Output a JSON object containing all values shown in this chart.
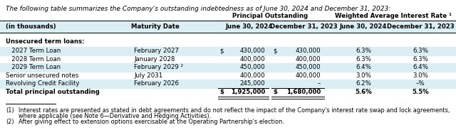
{
  "title": "The following table summarizes the Company's outstanding indebtedness as of June 30, 2024 and December 31, 2023:",
  "header_group1": "Principal Outstanding",
  "header_group2": "Weighted Average Interest Rate ¹",
  "col_headers": [
    "(in thousands)",
    "Maturity Date",
    "June 30, 2024",
    "December 31, 2023",
    "June 30, 2024",
    "December 31, 2023"
  ],
  "section_header": "Unsecured term loans:",
  "rows": [
    {
      "label": "   2027 Term Loan",
      "maturity": "February 2027",
      "dollar1": "$",
      "po_jun24": "430,000",
      "dollar2": "$",
      "po_dec23": "430,000",
      "ir_jun24": "6.3%",
      "ir_dec23": "6.3%",
      "shade": true
    },
    {
      "label": "   2028 Term Loan",
      "maturity": "January 2028",
      "dollar1": "",
      "po_jun24": "400,000",
      "dollar2": "",
      "po_dec23": "400,000",
      "ir_jun24": "6.3%",
      "ir_dec23": "6.3%",
      "shade": false
    },
    {
      "label": "   2029 Term Loan",
      "maturity": "February 2029 ²",
      "dollar1": "",
      "po_jun24": "450,000",
      "dollar2": "",
      "po_dec23": "450,000",
      "ir_jun24": "6.4%",
      "ir_dec23": "6.4%",
      "shade": true
    },
    {
      "label": "Senior unsecured notes",
      "maturity": "July 2031",
      "dollar1": "",
      "po_jun24": "400,000",
      "dollar2": "",
      "po_dec23": "400,000",
      "ir_jun24": "3.0%",
      "ir_dec23": "3.0%",
      "shade": false
    },
    {
      "label": "Revolving Credit Facility",
      "maturity": "February 2026",
      "dollar1": "",
      "po_jun24": "245,000",
      "dollar2": "",
      "po_dec23": "–",
      "ir_jun24": "6.2%",
      "ir_dec23": "–%",
      "shade": true
    }
  ],
  "total_label": "Total principal outstanding",
  "total_dollar1": "$",
  "total_po_jun24": "1,925,000",
  "total_dollar2": "$",
  "total_po_dec23": "1,680,000",
  "total_ir_jun24": "5.6%",
  "total_ir_dec23": "5.5%",
  "footnote1a": "(1)",
  "footnote1b": "Interest rates are presented as stated in debt agreements and do not reflect the impact of the Company's interest rate swap and lock agreements,",
  "footnote1c": "where applicable (see Note 6—Derivative and Hedging Activities).",
  "footnote2a": "(2)",
  "footnote2b": "After giving effect to extension options exercisable at the Operating Partnership's election.",
  "shade_color": "#daeef3",
  "header_bg": "#daeef3",
  "bg_color": "#ffffff",
  "font_size": 6.2,
  "title_font_size": 6.5
}
